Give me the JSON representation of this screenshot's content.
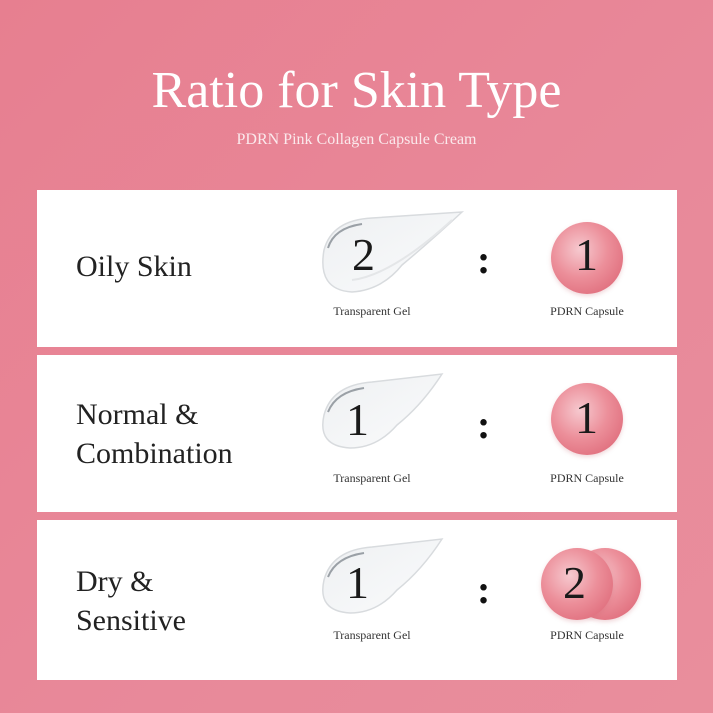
{
  "header": {
    "title": "Ratio for Skin Type",
    "subtitle": "PDRN Pink Collagen Capsule Cream"
  },
  "rows": [
    {
      "skin_type_line1": "Oily Skin",
      "skin_type_line2": "",
      "gel_ratio": "2",
      "separator": ":",
      "capsule_ratio": "1",
      "gel_label": "Transparent Gel",
      "capsule_label": "PDRN Capsule"
    },
    {
      "skin_type_line1": "Normal &",
      "skin_type_line2": "Combination",
      "gel_ratio": "1",
      "separator": ":",
      "capsule_ratio": "1",
      "gel_label": "Transparent Gel",
      "capsule_label": "PDRN Capsule"
    },
    {
      "skin_type_line1": "Dry &",
      "skin_type_line2": "Sensitive",
      "gel_ratio": "1",
      "separator": ":",
      "capsule_ratio": "2",
      "gel_label": "Transparent Gel",
      "capsule_label": "PDRN Capsule"
    }
  ],
  "colors": {
    "background": "#e8808f",
    "card": "#ffffff",
    "capsule": "#e27482"
  }
}
